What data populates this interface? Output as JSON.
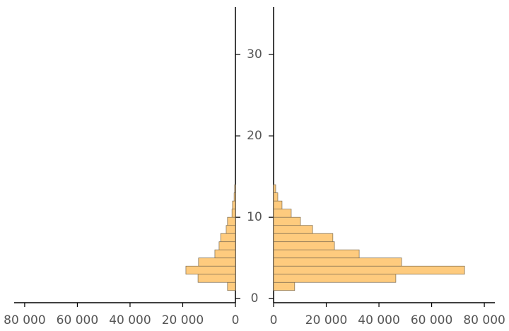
{
  "chart_data": {
    "type": "histogram",
    "bins": [
      1,
      2,
      3,
      4,
      5,
      6,
      7,
      8,
      9,
      10,
      11,
      12,
      13,
      14
    ],
    "series": [
      {
        "color": "#fecb7e",
        "values": [
          3000,
          14200,
          18800,
          14000,
          7800,
          6200,
          5600,
          3500,
          3000,
          1300,
          1100,
          500,
          300
        ]
      },
      {
        "color": "#fecb7e",
        "values": [
          8000,
          46400,
          72500,
          48600,
          32500,
          23100,
          22500,
          14800,
          10200,
          6700,
          3200,
          1600,
          800
        ]
      }
    ],
    "xlim": [
      0,
      84000
    ],
    "xticks": [
      0,
      {
        "value": 20000,
        "label": "20 000"
      },
      {
        "value": 40000,
        "label": "40 000"
      },
      {
        "value": 60000,
        "label": "60 000"
      },
      {
        "value": 80000,
        "label": "80 000"
      }
    ],
    "ylim": [
      -0.5,
      36
    ],
    "yticks": [
      0,
      10,
      20,
      30
    ]
  }
}
